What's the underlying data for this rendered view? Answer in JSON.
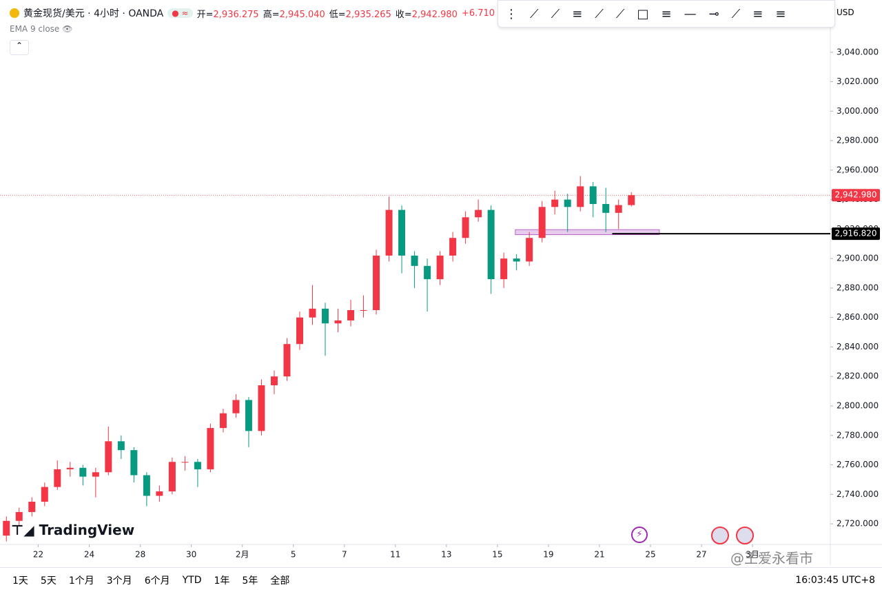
{
  "header": {
    "symbol": "黄金现货/美元 · 4小时 · OANDA",
    "ohlc": [
      {
        "label": "开=",
        "value": "2,936.275"
      },
      {
        "label": "高=",
        "value": "2,945.040"
      },
      {
        "label": "低=",
        "value": "2,935.265"
      },
      {
        "label": "收=",
        "value": "2,942.980"
      }
    ],
    "change": "+6.710",
    "indicator": "EMA 9 close",
    "currency": "USD"
  },
  "chart_data": {
    "type": "candlestick",
    "up_color": "#f23645",
    "down_color": "#089981",
    "x": [
      -0.25,
      0.25,
      0.75,
      1.25,
      1.75,
      2.25,
      2.75,
      3.25,
      3.75,
      4.25,
      4.75,
      5.25,
      5.75,
      6.25,
      6.75,
      7.25,
      7.75,
      8.25,
      8.75,
      9.25,
      9.75,
      10.25,
      10.75,
      11.25,
      11.75,
      12.25,
      12.75,
      13.25,
      13.75,
      14.25,
      14.75,
      15.25,
      15.75,
      16.25,
      16.75,
      17.25,
      17.75,
      18.25,
      18.75,
      19.25,
      19.75,
      20.25,
      20.75,
      21.25,
      21.75,
      22.25,
      22.75,
      23.25,
      23.75,
      24.25
    ],
    "open": [
      2712,
      2722,
      2728,
      2735,
      2745,
      2757,
      2758,
      2752,
      2755,
      2776,
      2770,
      2753,
      2739,
      2742,
      2762,
      2762,
      2757,
      2785,
      2795,
      2804,
      2783,
      2814,
      2820,
      2842,
      2860,
      2866,
      2856,
      2858,
      2865,
      2865,
      2902,
      2933,
      2902,
      2895,
      2886,
      2902,
      2914,
      2928,
      2933,
      2886,
      2900,
      2898,
      2914,
      2935,
      2940,
      2935,
      2949,
      2937,
      2931,
      2936.275
    ],
    "high": [
      2725,
      2731,
      2738,
      2748,
      2763,
      2762,
      2760,
      2758,
      2786,
      2780,
      2772,
      2755,
      2746,
      2765,
      2766,
      2764,
      2788,
      2798,
      2808,
      2806,
      2818,
      2824,
      2846,
      2864,
      2882,
      2870,
      2866,
      2872,
      2875,
      2906,
      2942,
      2936,
      2905,
      2900,
      2905,
      2918,
      2932,
      2940,
      2936,
      2904,
      2903,
      2918,
      2939,
      2946,
      2944,
      2956,
      2952,
      2948,
      2940,
      2945.04
    ],
    "low": [
      2708,
      2719,
      2725,
      2732,
      2743,
      2752,
      2746,
      2738,
      2753,
      2764,
      2748,
      2732,
      2735,
      2740,
      2756,
      2745,
      2755,
      2782,
      2792,
      2772,
      2780,
      2808,
      2817,
      2838,
      2855,
      2834,
      2850,
      2854,
      2860,
      2862,
      2898,
      2890,
      2880,
      2864,
      2882,
      2898,
      2910,
      2925,
      2876,
      2880,
      2892,
      2895,
      2911,
      2930,
      2918,
      2932,
      2928,
      2918,
      2920,
      2935.265
    ],
    "close": [
      2722,
      2728,
      2735,
      2745,
      2757,
      2758,
      2752,
      2755,
      2776,
      2770,
      2753,
      2739,
      2742,
      2762,
      2762,
      2757,
      2785,
      2795,
      2804,
      2783,
      2814,
      2820,
      2842,
      2860,
      2866,
      2856,
      2858,
      2865,
      2865,
      2902,
      2933,
      2902,
      2895,
      2886,
      2902,
      2914,
      2928,
      2933,
      2886,
      2900,
      2898,
      2914,
      2935,
      2940,
      2935,
      2949,
      2937,
      2931,
      2936.275,
      2942.98
    ],
    "xlim": [
      -0.5,
      32.05
    ],
    "ylim": [
      2706,
      3060
    ],
    "yticks": [
      {
        "value": 2720,
        "label": "2,720.000"
      },
      {
        "value": 2740,
        "label": "2,740.000"
      },
      {
        "value": 2760,
        "label": "2,760.000"
      },
      {
        "value": 2780,
        "label": "2,780.000"
      },
      {
        "value": 2800,
        "label": "2,800.000"
      },
      {
        "value": 2820,
        "label": "2,820.000"
      },
      {
        "value": 2840,
        "label": "2,840.000"
      },
      {
        "value": 2860,
        "label": "2,860.000"
      },
      {
        "value": 2880,
        "label": "2,880.000"
      },
      {
        "value": 2900,
        "label": "2,900.000"
      },
      {
        "value": 2920,
        "label": "2,920.000"
      },
      {
        "value": 2940,
        "label": "2,940.000"
      },
      {
        "value": 2960,
        "label": "2,960.000"
      },
      {
        "value": 2980,
        "label": "2,980.000"
      },
      {
        "value": 3000,
        "label": "3,000.000"
      },
      {
        "value": 3020,
        "label": "3,020.000"
      },
      {
        "value": 3040,
        "label": "3,040.000"
      }
    ],
    "xticks": [
      {
        "value": 1,
        "label": "22"
      },
      {
        "value": 3,
        "label": "24"
      },
      {
        "value": 5,
        "label": "28"
      },
      {
        "value": 7,
        "label": "30"
      },
      {
        "value": 9,
        "label": "2月"
      },
      {
        "value": 11,
        "label": "5"
      },
      {
        "value": 13,
        "label": "7"
      },
      {
        "value": 15,
        "label": "11"
      },
      {
        "value": 17,
        "label": "13"
      },
      {
        "value": 19,
        "label": "15"
      },
      {
        "value": 21,
        "label": "19"
      },
      {
        "value": 23,
        "label": "21"
      },
      {
        "value": 25,
        "label": "25"
      },
      {
        "value": 27,
        "label": "27"
      },
      {
        "value": 29,
        "label": "3月"
      }
    ],
    "last_price": {
      "value": 2942.98,
      "label": "2,942.980"
    },
    "hline": {
      "value": 2916.82,
      "label": "2,916.820",
      "x_start": 23.5
    },
    "zone": {
      "x": [
        19.7,
        25.35
      ],
      "y": [
        2916.2,
        2919.6
      ]
    }
  },
  "footer": {
    "ranges": [
      "1天",
      "5天",
      "1个月",
      "3个月",
      "6个月",
      "YTD",
      "1年",
      "5年",
      "全部"
    ],
    "time": "16:03:45 UTC+8"
  },
  "watermark": {
    "brand": "TradingView",
    "author": "@王爱永看市"
  }
}
